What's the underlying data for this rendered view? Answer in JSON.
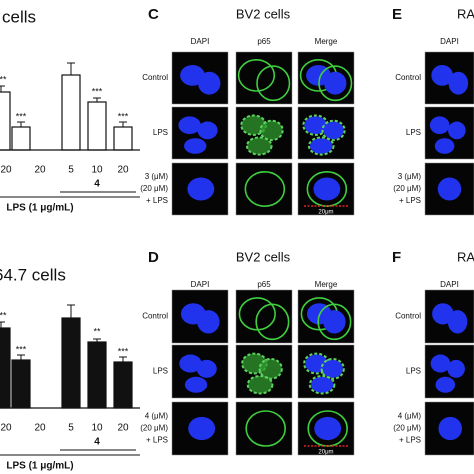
{
  "panels": {
    "A": {
      "title": "cells",
      "x_labels": [
        "20",
        "20",
        "5",
        "10",
        "20"
      ],
      "group_label": "4",
      "treatment": "LPS (1 μg/mL)",
      "annotations": [
        "**",
        "***",
        "***",
        "***"
      ]
    },
    "B": {
      "title": "64.7 cells",
      "x_labels": [
        "20",
        "20",
        "5",
        "10",
        "20"
      ],
      "group_label": "4",
      "treatment": "LPS (1 μg/mL)",
      "annotations": [
        "**",
        "***",
        "**",
        "***"
      ]
    },
    "C": {
      "label": "C",
      "title": "BV2 cells",
      "columns": [
        "DAPI",
        "p65",
        "Merge"
      ],
      "rows": [
        [
          "Control"
        ],
        [
          "LPS"
        ],
        [
          "3 (μM)",
          "(20 μM)",
          "+ LPS"
        ]
      ],
      "scale_bar": "20μm"
    },
    "D": {
      "label": "D",
      "title": "BV2 cells",
      "columns": [
        "DAPI",
        "p65",
        "Merge"
      ],
      "rows": [
        [
          "Control"
        ],
        [
          "LPS"
        ],
        [
          "4 (μM)",
          "(20 μM)",
          "+ LPS"
        ]
      ],
      "scale_bar": "20μm"
    },
    "E": {
      "label": "E",
      "title": "RA",
      "columns": [
        "DAPI"
      ],
      "rows": [
        [
          "Control"
        ],
        [
          "LPS"
        ],
        [
          "3 (μM)",
          "(20 μM)",
          "+ LPS"
        ]
      ]
    },
    "F": {
      "label": "F",
      "title": "RA",
      "columns": [
        "DAPI"
      ],
      "rows": [
        [
          "Control"
        ],
        [
          "LPS"
        ],
        [
          "4 (μM)",
          "(20 μM)",
          "+ LPS"
        ]
      ]
    }
  }
}
